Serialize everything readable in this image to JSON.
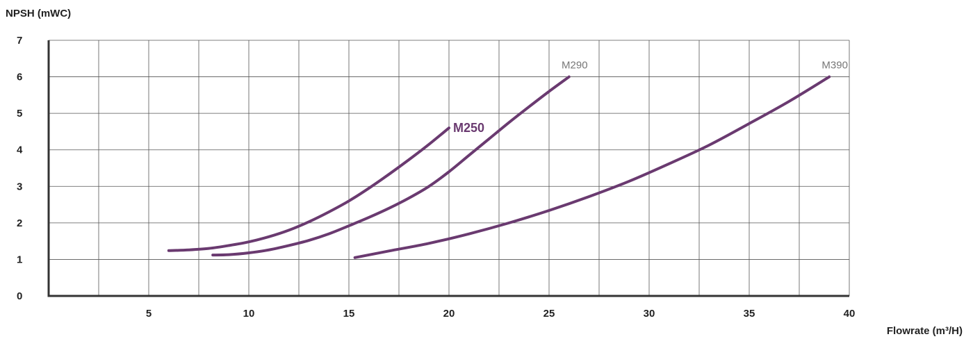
{
  "chart_data": {
    "type": "line",
    "ylabel": "NPSH (mWC)",
    "xlabel": "Flowrate (m³/H)",
    "xlim": [
      0,
      40
    ],
    "ylim": [
      0,
      7
    ],
    "x_ticks": [
      5,
      10,
      15,
      20,
      25,
      30,
      35,
      40
    ],
    "x_tick_labels": [
      "5",
      "10",
      "15",
      "20",
      "25",
      "30",
      "35",
      "40"
    ],
    "x_grid": [
      2.5,
      5,
      7.5,
      10,
      12.5,
      15,
      17.5,
      20,
      22.5,
      25,
      27.5,
      30,
      32.5,
      35,
      37.5,
      40
    ],
    "y_ticks": [
      0,
      1,
      2,
      3,
      4,
      5,
      6,
      7
    ],
    "y_tick_labels": [
      "0",
      "1",
      "2",
      "3",
      "4",
      "5",
      "6",
      "7"
    ],
    "grid": true,
    "line_color": "#6a3a70",
    "series": [
      {
        "name": "M250",
        "label_style": "bold",
        "label_color": "#6a3a70",
        "points": [
          [
            6,
            1.24
          ],
          [
            7,
            1.26
          ],
          [
            8,
            1.3
          ],
          [
            9,
            1.38
          ],
          [
            10,
            1.48
          ],
          [
            11,
            1.62
          ],
          [
            12,
            1.8
          ],
          [
            13,
            2.03
          ],
          [
            14,
            2.3
          ],
          [
            15,
            2.6
          ],
          [
            16,
            2.95
          ],
          [
            17,
            3.33
          ],
          [
            18,
            3.73
          ],
          [
            19,
            4.15
          ],
          [
            20,
            4.6
          ]
        ]
      },
      {
        "name": "M290",
        "label_style": "plain",
        "label_color": "#777777",
        "points": [
          [
            8.2,
            1.12
          ],
          [
            9,
            1.13
          ],
          [
            10,
            1.18
          ],
          [
            11,
            1.26
          ],
          [
            12,
            1.38
          ],
          [
            13,
            1.52
          ],
          [
            14,
            1.7
          ],
          [
            15,
            1.92
          ],
          [
            16,
            2.15
          ],
          [
            17,
            2.4
          ],
          [
            18,
            2.68
          ],
          [
            19,
            3.0
          ],
          [
            20,
            3.4
          ],
          [
            21,
            3.85
          ],
          [
            22,
            4.3
          ],
          [
            23,
            4.75
          ],
          [
            24,
            5.18
          ],
          [
            25,
            5.6
          ],
          [
            26,
            6.0
          ]
        ]
      },
      {
        "name": "M390",
        "label_style": "plain",
        "label_color": "#777777",
        "points": [
          [
            15.3,
            1.05
          ],
          [
            17,
            1.23
          ],
          [
            19,
            1.44
          ],
          [
            21,
            1.7
          ],
          [
            23,
            2.0
          ],
          [
            25,
            2.34
          ],
          [
            27,
            2.72
          ],
          [
            29,
            3.14
          ],
          [
            31,
            3.62
          ],
          [
            33,
            4.13
          ],
          [
            35,
            4.72
          ],
          [
            37,
            5.33
          ],
          [
            39,
            6.0
          ]
        ]
      }
    ]
  }
}
